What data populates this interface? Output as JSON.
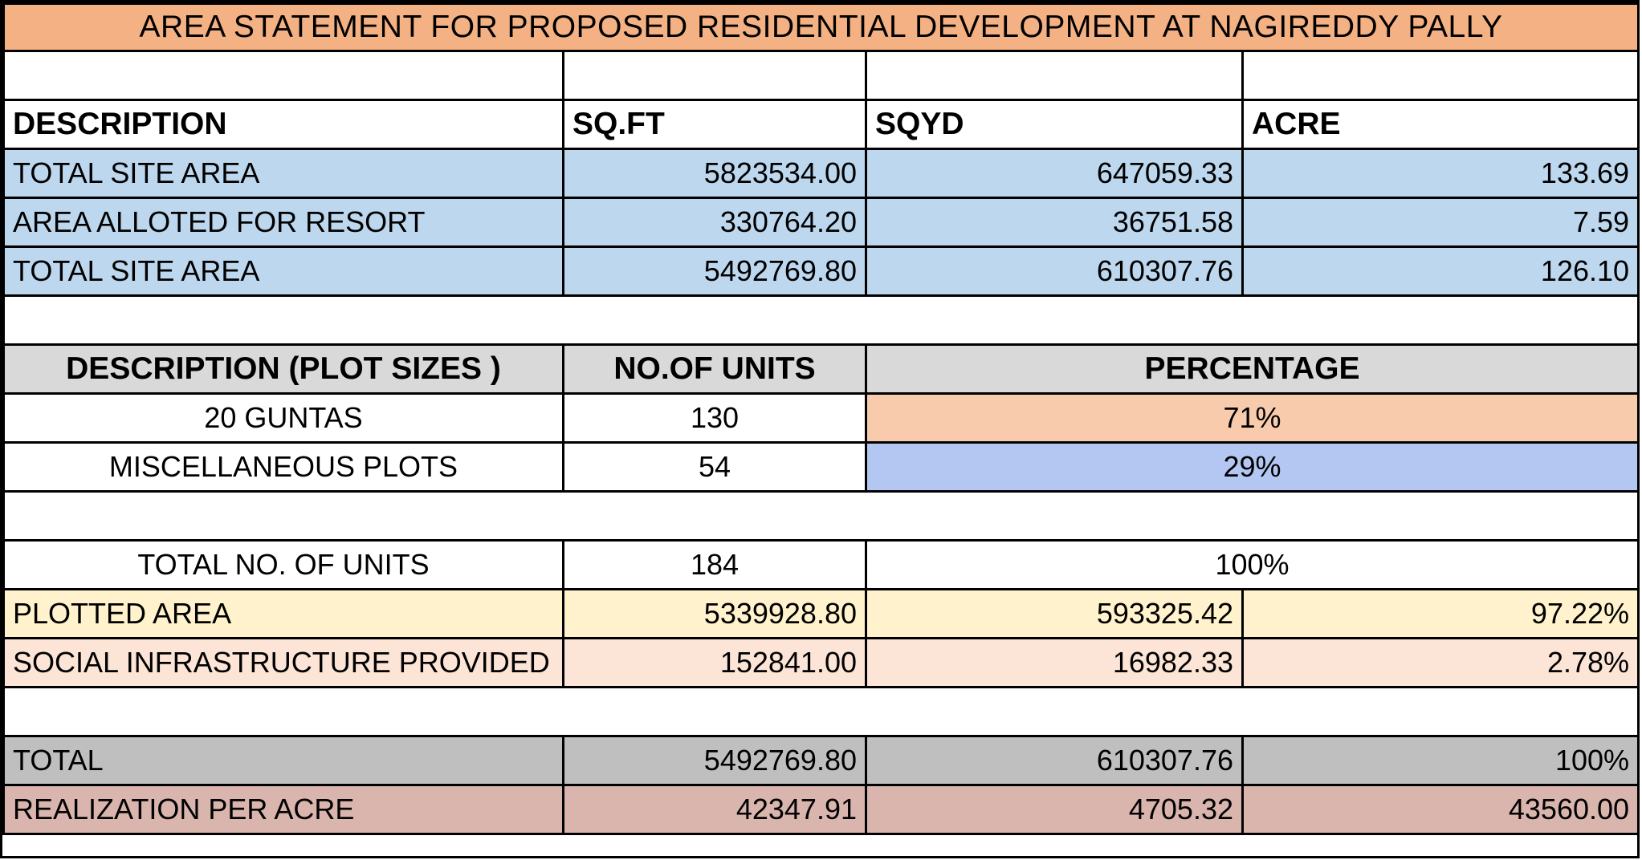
{
  "title": "AREA STATEMENT FOR PROPOSED RESIDENTIAL DEVELOPMENT AT NAGIREDDY PALLY",
  "area_header": {
    "description": "DESCRIPTION",
    "sqft": "SQ.FT",
    "sqyd": "SQYD",
    "acre": "ACRE"
  },
  "area_rows": [
    {
      "description": "TOTAL SITE AREA",
      "sqft": "5823534.00",
      "sqyd": "647059.33",
      "acre": "133.69"
    },
    {
      "description": "AREA ALLOTED FOR RESORT",
      "sqft": "330764.20",
      "sqyd": "36751.58",
      "acre": "7.59"
    },
    {
      "description": "TOTAL SITE AREA",
      "sqft": "5492769.80",
      "sqyd": "610307.76",
      "acre": "126.10"
    }
  ],
  "plot_header": {
    "description": "DESCRIPTION (PLOT SIZES )",
    "units": "NO.OF UNITS",
    "percentage": "PERCENTAGE"
  },
  "plot_rows": [
    {
      "description": "20 GUNTAS",
      "units": "130",
      "percentage": "71%"
    },
    {
      "description": "MISCELLANEOUS PLOTS",
      "units": "54",
      "percentage": "29%"
    }
  ],
  "total_units": {
    "description": "TOTAL NO. OF UNITS",
    "units": "184",
    "percentage": "100%"
  },
  "plotted_area": {
    "description": "PLOTTED AREA",
    "sqft": "5339928.80",
    "sqyd": "593325.42",
    "pct": "97.22%"
  },
  "social_infra": {
    "description": "SOCIAL INFRASTRUCTURE PROVIDED",
    "sqft": "152841.00",
    "sqyd": "16982.33",
    "pct": "2.78%"
  },
  "total": {
    "description": "TOTAL",
    "sqft": "5492769.80",
    "sqyd": "610307.76",
    "pct": "100%"
  },
  "realization": {
    "description": "REALIZATION PER ACRE",
    "sqft": "42347.91",
    "sqyd": "4705.32",
    "acre": "43560.00"
  },
  "colors": {
    "title_bg": "#f4b183",
    "blue_rows": "#bdd7ee",
    "header_grey": "#d9d9d9",
    "peach_cell": "#f8cbad",
    "periwinkle_cell": "#b4c7f2",
    "plotted_bg": "#fff2cc",
    "social_bg": "#fce4d6",
    "total_bg": "#bfbfbf",
    "realization_bg": "#d9b5ae"
  }
}
